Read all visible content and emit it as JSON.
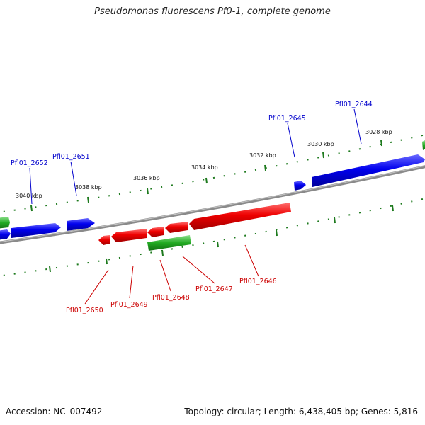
{
  "title": "Pseudomonas fluorescens Pf0-1, complete genome",
  "footer": {
    "accession": "Accession: NC_007492",
    "summary": "Topology: circular; Length: 6,438,405 bp; Genes: 5,816"
  },
  "colors": {
    "forward_gene": "#0000ee",
    "reverse_gene": "#ee0000",
    "other_gene": "#22aa22",
    "backbone": "#888888",
    "tick": "#1e7a1e"
  },
  "scale_labels": [
    "3040 kbp",
    "3038 kbp",
    "3036 kbp",
    "3034 kbp",
    "3032 kbp",
    "3030 kbp",
    "3028 kbp"
  ],
  "forward_labels": [
    "Pfl01_2652",
    "Pfl01_2651",
    "Pfl01_2645",
    "Pfl01_2644"
  ],
  "reverse_labels": [
    "Pfl01_2650",
    "Pfl01_2649",
    "Pfl01_2648",
    "Pfl01_2647",
    "Pfl01_2646"
  ]
}
